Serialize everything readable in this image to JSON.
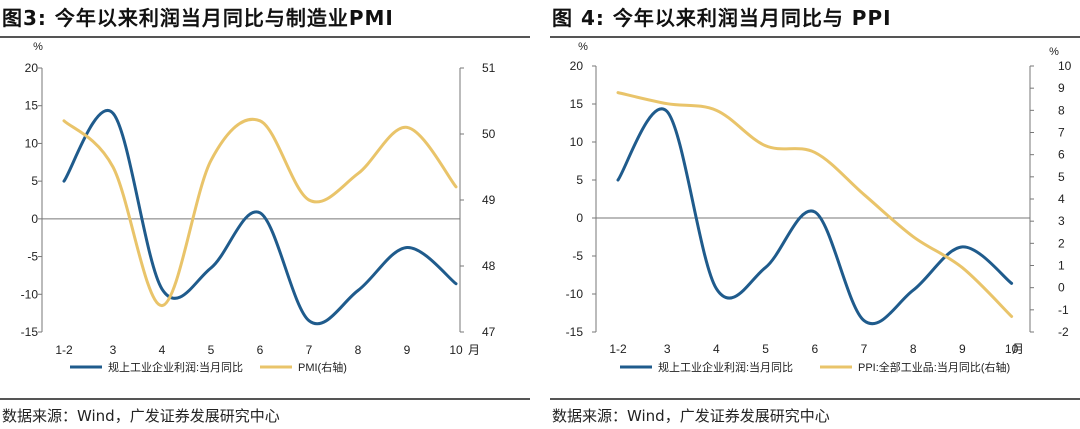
{
  "panels": [
    {
      "title": "图3:  今年以来利润当月同比与制造业PMI",
      "source": "数据来源：Wind，广发证券发展研究中心"
    },
    {
      "title": "图 4:  今年以来利润当月同比与 PPI",
      "source": "数据来源：Wind，广发证券发展研究中心"
    }
  ],
  "chart_data": [
    {
      "type": "line",
      "title": "图3:  今年以来利润当月同比与制造业PMI",
      "x_unit": "月",
      "categories": [
        "1-2",
        "3",
        "4",
        "5",
        "6",
        "7",
        "8",
        "9",
        "10"
      ],
      "left_axis": {
        "unit": "%",
        "ylim": [
          -15,
          20
        ],
        "ticks": [
          20,
          15,
          10,
          5,
          0,
          -5,
          -10,
          -15
        ]
      },
      "right_axis": {
        "unit": "",
        "ylim": [
          47,
          51
        ],
        "ticks": [
          51,
          50,
          49,
          48,
          47
        ]
      },
      "series": [
        {
          "name": "规上工业企业利润:当月同比",
          "axis": "left",
          "color": "#1f5b8c",
          "values": [
            5.0,
            14.0,
            -9.3,
            -6.5,
            0.8,
            -13.5,
            -9.5,
            -3.8,
            -8.6
          ]
        },
        {
          "name": "PMI(右轴)",
          "axis": "right",
          "color": "#e9c46a",
          "values": [
            50.2,
            49.5,
            47.4,
            49.6,
            50.2,
            49.0,
            49.4,
            50.1,
            49.2
          ]
        }
      ],
      "grid": false,
      "legend": "bottom"
    },
    {
      "type": "line",
      "title": "图 4:  今年以来利润当月同比与 PPI",
      "x_unit": "月",
      "categories": [
        "1-2",
        "3",
        "4",
        "5",
        "6",
        "7",
        "8",
        "9",
        "10"
      ],
      "left_axis": {
        "unit": "%",
        "ylim": [
          -15,
          20
        ],
        "ticks": [
          20,
          15,
          10,
          5,
          0,
          -5,
          -10,
          -15
        ]
      },
      "right_axis": {
        "unit": "%",
        "ylim": [
          -2,
          10
        ],
        "ticks": [
          10,
          9,
          8,
          7,
          6,
          5,
          4,
          3,
          2,
          1,
          0,
          -1,
          -2
        ]
      },
      "series": [
        {
          "name": "规上工业企业利润:当月同比",
          "axis": "left",
          "color": "#1f5b8c",
          "values": [
            5.0,
            14.0,
            -9.3,
            -6.5,
            0.8,
            -13.5,
            -9.5,
            -3.8,
            -8.6
          ]
        },
        {
          "name": "PPI:全部工业品:当月同比(右轴)",
          "axis": "right",
          "color": "#e9c46a",
          "values": [
            8.8,
            8.3,
            8.0,
            6.4,
            6.1,
            4.2,
            2.3,
            0.9,
            -1.3
          ]
        }
      ],
      "grid": false,
      "legend": "bottom"
    }
  ]
}
